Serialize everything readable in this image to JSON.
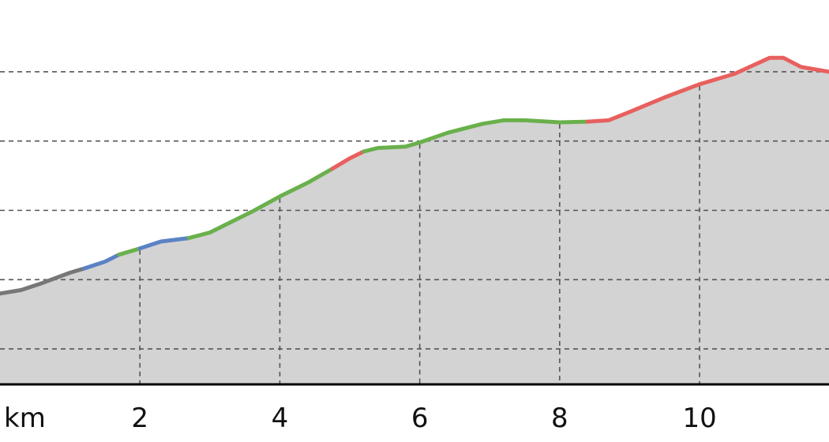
{
  "chart_data": {
    "type": "area",
    "title": "",
    "xlabel": "",
    "ylabel": "",
    "x_unit_label": "km",
    "xlim": [
      0.0,
      11.85
    ],
    "ylim": [
      0,
      5
    ],
    "x_ticks": [
      2,
      4,
      6,
      8,
      10
    ],
    "x_tick_labels": [
      "2",
      "4",
      "6",
      "8",
      "10"
    ],
    "y_gridlines": [
      0.5,
      1.5,
      2.5,
      3.5,
      4.5
    ],
    "grid": true,
    "legend": "none",
    "colors": {
      "fill": "#d3d3d3",
      "gray": "#777777",
      "blue": "#5b82c4",
      "green": "#6ab04c",
      "red": "#e8605e",
      "grid": "#555555",
      "axis": "#000000"
    },
    "profile": [
      [
        0.0,
        1.3
      ],
      [
        0.3,
        1.35
      ],
      [
        0.6,
        1.45
      ],
      [
        1.0,
        1.6
      ],
      [
        1.2,
        1.66
      ],
      [
        1.5,
        1.76
      ],
      [
        1.7,
        1.86
      ],
      [
        2.0,
        1.95
      ],
      [
        2.3,
        2.05
      ],
      [
        2.7,
        2.1
      ],
      [
        3.0,
        2.18
      ],
      [
        3.3,
        2.33
      ],
      [
        3.6,
        2.48
      ],
      [
        4.0,
        2.7
      ],
      [
        4.4,
        2.9
      ],
      [
        4.75,
        3.1
      ],
      [
        5.0,
        3.25
      ],
      [
        5.2,
        3.35
      ],
      [
        5.4,
        3.4
      ],
      [
        5.8,
        3.42
      ],
      [
        6.0,
        3.48
      ],
      [
        6.4,
        3.62
      ],
      [
        6.9,
        3.75
      ],
      [
        7.2,
        3.8
      ],
      [
        7.5,
        3.8
      ],
      [
        8.0,
        3.77
      ],
      [
        8.4,
        3.78
      ],
      [
        8.7,
        3.8
      ],
      [
        9.0,
        3.92
      ],
      [
        9.5,
        4.13
      ],
      [
        10.0,
        4.32
      ],
      [
        10.5,
        4.47
      ],
      [
        11.0,
        4.7
      ],
      [
        11.2,
        4.7
      ],
      [
        11.45,
        4.57
      ],
      [
        11.85,
        4.5
      ]
    ],
    "segments": [
      {
        "from": 0.0,
        "to": 1.2,
        "color": "gray"
      },
      {
        "from": 1.2,
        "to": 1.7,
        "color": "blue"
      },
      {
        "from": 1.7,
        "to": 2.0,
        "color": "green"
      },
      {
        "from": 2.0,
        "to": 2.7,
        "color": "blue"
      },
      {
        "from": 2.7,
        "to": 4.75,
        "color": "green"
      },
      {
        "from": 4.75,
        "to": 5.2,
        "color": "red"
      },
      {
        "from": 5.2,
        "to": 8.4,
        "color": "green"
      },
      {
        "from": 8.4,
        "to": 11.85,
        "color": "red"
      }
    ]
  }
}
